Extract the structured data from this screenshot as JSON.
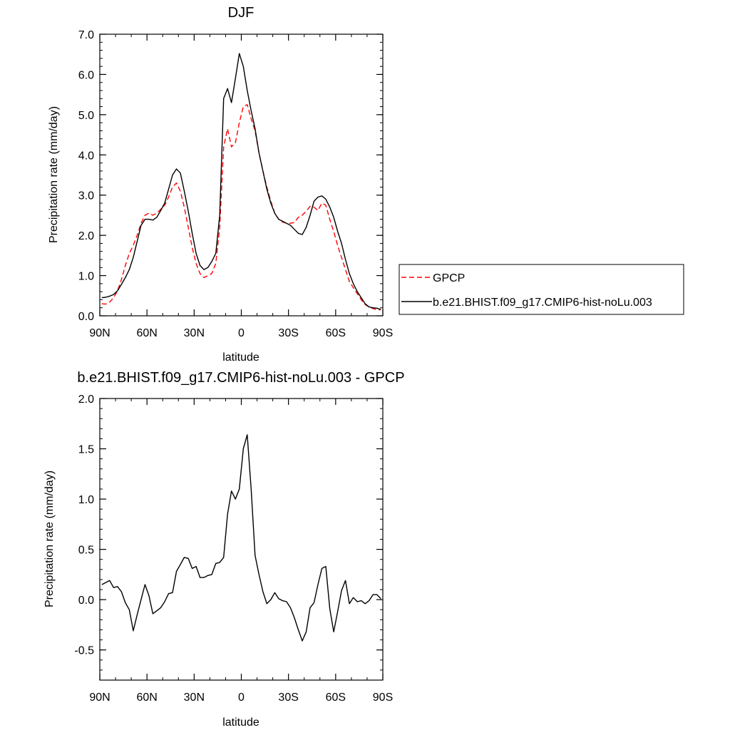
{
  "chart_data": [
    {
      "type": "line",
      "title": "DJF",
      "xlabel": "latitude",
      "ylabel": "Precipitation rate (mm/day)",
      "xlim": [
        90,
        -90
      ],
      "ylim": [
        0,
        7
      ],
      "x_ticks": [
        {
          "value": 90,
          "label": "90N"
        },
        {
          "value": 60,
          "label": "60N"
        },
        {
          "value": 30,
          "label": "30N"
        },
        {
          "value": 0,
          "label": "0"
        },
        {
          "value": -30,
          "label": "30S"
        },
        {
          "value": -60,
          "label": "60S"
        },
        {
          "value": -90,
          "label": "90S"
        }
      ],
      "y_ticks": [
        {
          "value": 0,
          "label": "0.0"
        },
        {
          "value": 1,
          "label": "1.0"
        },
        {
          "value": 2,
          "label": "2.0"
        },
        {
          "value": 3,
          "label": "3.0"
        },
        {
          "value": 4,
          "label": "4.0"
        },
        {
          "value": 5,
          "label": "5.0"
        },
        {
          "value": 6,
          "label": "6.0"
        },
        {
          "value": 7,
          "label": "7.0"
        }
      ],
      "grid": false,
      "legend": "outside-right",
      "series": [
        {
          "name": "GPCP",
          "color": "#ff0000",
          "dash": true,
          "x": [
            88.75,
            86.25,
            83.75,
            81.25,
            78.75,
            76.25,
            73.75,
            71.25,
            68.75,
            66.25,
            63.75,
            61.25,
            58.75,
            56.25,
            53.75,
            51.25,
            48.75,
            46.25,
            43.75,
            41.25,
            38.75,
            36.25,
            33.75,
            31.25,
            28.75,
            26.25,
            23.75,
            21.25,
            18.75,
            16.25,
            13.75,
            11.25,
            8.75,
            6.25,
            3.75,
            1.25,
            -1.25,
            -3.75,
            -6.25,
            -8.75,
            -11.25,
            -13.75,
            -16.25,
            -18.75,
            -21.25,
            -23.75,
            -26.25,
            -28.75,
            -31.25,
            -33.75,
            -36.25,
            -38.75,
            -41.25,
            -43.75,
            -46.25,
            -48.75,
            -51.25,
            -53.75,
            -56.25,
            -58.75,
            -61.25,
            -63.75,
            -66.25,
            -68.75,
            -71.25,
            -73.75,
            -76.25,
            -78.75,
            -81.25,
            -83.75,
            -86.25,
            -88.75
          ],
          "values": [
            0.3,
            0.29,
            0.34,
            0.45,
            0.62,
            0.9,
            1.25,
            1.55,
            1.75,
            2.0,
            2.3,
            2.5,
            2.55,
            2.5,
            2.55,
            2.65,
            2.75,
            2.95,
            3.2,
            3.3,
            3.1,
            2.7,
            2.2,
            1.7,
            1.3,
            1.05,
            0.95,
            1.0,
            1.05,
            1.3,
            2.2,
            4.2,
            4.65,
            4.2,
            4.3,
            4.8,
            5.2,
            5.25,
            4.9,
            4.6,
            4.05,
            3.6,
            3.2,
            2.85,
            2.55,
            2.4,
            2.33,
            2.3,
            2.3,
            2.32,
            2.45,
            2.5,
            2.6,
            2.72,
            2.7,
            2.62,
            2.8,
            2.75,
            2.4,
            2.1,
            1.75,
            1.45,
            1.15,
            0.85,
            0.7,
            0.55,
            0.4,
            0.28,
            0.22,
            0.18,
            0.15,
            0.15
          ]
        },
        {
          "name": "b.e21.BHIST.f09_g17.CMIP6-hist-noLu.003",
          "color": "#000000",
          "dash": false,
          "x": [
            88.75,
            86.25,
            83.75,
            81.25,
            78.75,
            76.25,
            73.75,
            71.25,
            68.75,
            66.25,
            63.75,
            61.25,
            58.75,
            56.25,
            53.75,
            51.25,
            48.75,
            46.25,
            43.75,
            41.25,
            38.75,
            36.25,
            33.75,
            31.25,
            28.75,
            26.25,
            23.75,
            21.25,
            18.75,
            16.25,
            13.75,
            11.25,
            8.75,
            6.25,
            3.75,
            1.25,
            -1.25,
            -3.75,
            -6.25,
            -8.75,
            -11.25,
            -13.75,
            -16.25,
            -18.75,
            -21.25,
            -23.75,
            -26.25,
            -28.75,
            -31.25,
            -33.75,
            -36.25,
            -38.75,
            -41.25,
            -43.75,
            -46.25,
            -48.75,
            -51.25,
            -53.75,
            -56.25,
            -58.75,
            -61.25,
            -63.75,
            -66.25,
            -68.75,
            -71.25,
            -73.75,
            -76.25,
            -78.75,
            -81.25,
            -83.75,
            -86.25,
            -88.75
          ],
          "values": [
            0.45,
            0.46,
            0.49,
            0.53,
            0.62,
            0.78,
            0.95,
            1.15,
            1.45,
            1.85,
            2.25,
            2.4,
            2.4,
            2.38,
            2.45,
            2.62,
            2.8,
            3.15,
            3.5,
            3.65,
            3.55,
            3.1,
            2.6,
            2.05,
            1.55,
            1.25,
            1.15,
            1.2,
            1.35,
            1.55,
            2.5,
            5.4,
            5.65,
            5.3,
            5.9,
            6.52,
            6.2,
            5.6,
            5.1,
            4.65,
            4.05,
            3.6,
            3.15,
            2.8,
            2.55,
            2.4,
            2.35,
            2.3,
            2.25,
            2.15,
            2.05,
            2.02,
            2.2,
            2.5,
            2.85,
            2.95,
            2.98,
            2.9,
            2.7,
            2.45,
            2.1,
            1.8,
            1.4,
            1.05,
            0.8,
            0.6,
            0.45,
            0.3,
            0.22,
            0.2,
            0.19,
            0.16
          ]
        }
      ]
    },
    {
      "type": "line",
      "title": "b.e21.BHIST.f09_g17.CMIP6-hist-noLu.003 - GPCP",
      "xlabel": "latitude",
      "ylabel": "Precipitation rate (mm/day)",
      "xlim": [
        90,
        -90
      ],
      "ylim": [
        -0.8,
        2.0
      ],
      "x_ticks": [
        {
          "value": 90,
          "label": "90N"
        },
        {
          "value": 60,
          "label": "60N"
        },
        {
          "value": 30,
          "label": "30N"
        },
        {
          "value": 0,
          "label": "0"
        },
        {
          "value": -30,
          "label": "30S"
        },
        {
          "value": -60,
          "label": "60S"
        },
        {
          "value": -90,
          "label": "90S"
        }
      ],
      "y_ticks": [
        {
          "value": -0.5,
          "label": "-0.5"
        },
        {
          "value": 0.0,
          "label": "0.0"
        },
        {
          "value": 0.5,
          "label": "0.5"
        },
        {
          "value": 1.0,
          "label": "1.0"
        },
        {
          "value": 1.5,
          "label": "1.5"
        },
        {
          "value": 2.0,
          "label": "2.0"
        }
      ],
      "grid": false,
      "series": [
        {
          "color": "#000000",
          "dash": false,
          "x": [
            88.75,
            86.25,
            83.75,
            81.25,
            78.75,
            76.25,
            73.75,
            71.25,
            68.75,
            66.25,
            63.75,
            61.25,
            58.75,
            56.25,
            53.75,
            51.25,
            48.75,
            46.25,
            43.75,
            41.25,
            38.75,
            36.25,
            33.75,
            31.25,
            28.75,
            26.25,
            23.75,
            21.25,
            18.75,
            16.25,
            13.75,
            11.25,
            8.75,
            6.25,
            3.75,
            1.25,
            -1.25,
            -3.75,
            -6.25,
            -8.75,
            -11.25,
            -13.75,
            -16.25,
            -18.75,
            -21.25,
            -23.75,
            -26.25,
            -28.75,
            -31.25,
            -33.75,
            -36.25,
            -38.75,
            -41.25,
            -43.75,
            -46.25,
            -48.75,
            -51.25,
            -53.75,
            -56.25,
            -58.75,
            -61.25,
            -63.75,
            -66.25,
            -68.75,
            -71.25,
            -73.75,
            -76.25,
            -78.75,
            -81.25,
            -83.75,
            -86.25,
            -88.75
          ],
          "values": [
            0.15,
            0.17,
            0.19,
            0.12,
            0.13,
            0.08,
            -0.03,
            -0.1,
            -0.31,
            -0.15,
            0.0,
            0.15,
            0.04,
            -0.14,
            -0.11,
            -0.08,
            -0.02,
            0.06,
            0.07,
            0.28,
            0.35,
            0.42,
            0.41,
            0.31,
            0.33,
            0.22,
            0.22,
            0.24,
            0.25,
            0.36,
            0.37,
            0.42,
            0.85,
            1.08,
            1.0,
            1.1,
            1.5,
            1.64,
            1.1,
            0.44,
            0.25,
            0.08,
            -0.04,
            0.0,
            0.07,
            0.01,
            -0.01,
            -0.02,
            -0.08,
            -0.18,
            -0.3,
            -0.41,
            -0.32,
            -0.08,
            -0.03,
            0.15,
            0.31,
            0.33,
            -0.09,
            -0.32,
            -0.12,
            0.09,
            0.19,
            -0.04,
            0.02,
            -0.02,
            -0.01,
            -0.04,
            -0.01,
            0.05,
            0.05,
            0.01
          ]
        }
      ]
    }
  ]
}
